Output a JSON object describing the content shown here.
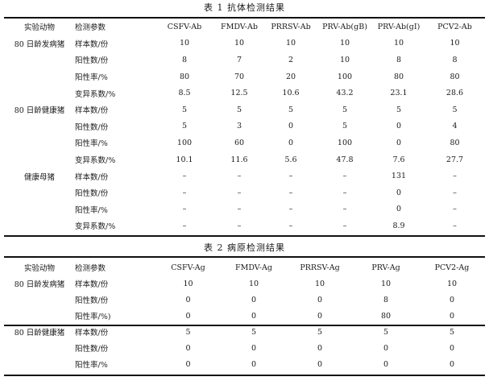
{
  "table1": {
    "title": "表 1   抗体检测结果",
    "headers": [
      "实验动物",
      "检测参数",
      "CSFV-Ab",
      "FMDV-Ab",
      "PRRSV-Ab",
      "PRV-Ab(gB)",
      "PRV-Ab(gI)",
      "PCV2-Ab"
    ],
    "rows": [
      [
        "80 日龄发病猪",
        "样本数/份",
        "10",
        "10",
        "10",
        "10",
        "10",
        "10"
      ],
      [
        "",
        "阳性数/份",
        "8",
        "7",
        "2",
        "10",
        "8",
        "8"
      ],
      [
        "",
        "阳性率/%",
        "80",
        "70",
        "20",
        "100",
        "80",
        "80"
      ],
      [
        "",
        "变异系数/%",
        "8.5",
        "12.5",
        "10.6",
        "43.2",
        "23.1",
        "28.6"
      ],
      [
        "80 日龄健康猪",
        "样本数/份",
        "5",
        "5",
        "5",
        "5",
        "5",
        "5"
      ],
      [
        "",
        "阳性数/份",
        "5",
        "3",
        "0",
        "5",
        "0",
        "4"
      ],
      [
        "",
        "阳性率/%",
        "100",
        "60",
        "0",
        "100",
        "0",
        "80"
      ],
      [
        "",
        "变异系数/%",
        "10.1",
        "11.6",
        "5.6",
        "47.8",
        "7.6",
        "27.7"
      ],
      [
        "健康母猪",
        "样本数/份",
        "–",
        "–",
        "–",
        "–",
        "131",
        "–"
      ],
      [
        "",
        "阳性数/份",
        "–",
        "–",
        "–",
        "–",
        "0",
        "–"
      ],
      [
        "",
        "阳性率/%",
        "–",
        "–",
        "–",
        "–",
        "0",
        "–"
      ],
      [
        "",
        "变异系数/%",
        "–",
        "–",
        "–",
        "–",
        "8.9",
        "–"
      ]
    ]
  },
  "table2": {
    "title": "表 2   病原检测结果",
    "headers": [
      "实验动物",
      "检测参数",
      "CSFV-Ag",
      "FMDV-Ag",
      "PRRSV-Ag",
      "PRV-Ag",
      "PCV2-Ag"
    ],
    "rows": [
      [
        "80 日龄发病猪",
        "样本数/份",
        "10",
        "10",
        "10",
        "10",
        "10"
      ],
      [
        "",
        "阳性数/份",
        "0",
        "0",
        "0",
        "8",
        "0"
      ],
      [
        "",
        "阳性率/%)",
        "0",
        "0",
        "0",
        "80",
        "0"
      ],
      [
        "80 日龄健康猪",
        "样本数/份",
        "5",
        "5",
        "5",
        "5",
        "5"
      ],
      [
        "",
        "阳性数/份",
        "0",
        "0",
        "0",
        "0",
        "0"
      ],
      [
        "",
        "阳性率/%",
        "0",
        "0",
        "0",
        "0",
        "0"
      ]
    ]
  }
}
